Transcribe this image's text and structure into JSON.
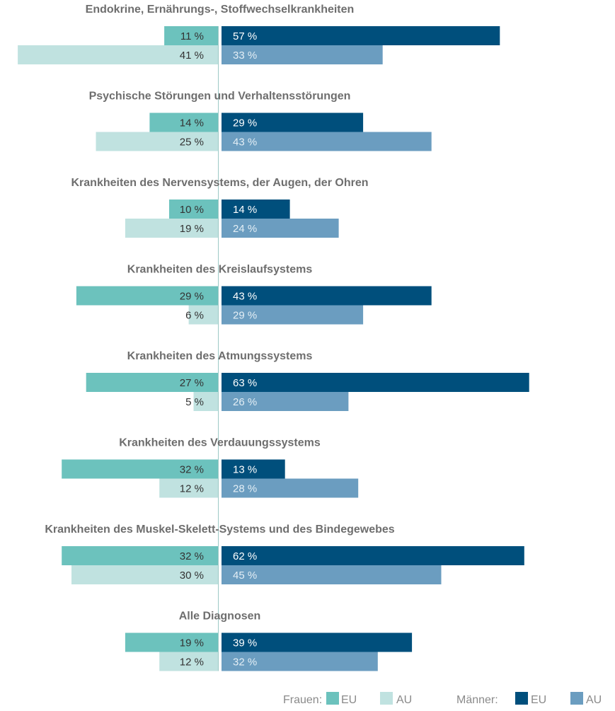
{
  "chart_data": {
    "type": "bar",
    "orientation": "horizontal-diverging",
    "value_suffix": " %",
    "colors": {
      "frauen_eu": "#6cc2bd",
      "frauen_au": "#c0e2e0",
      "maenner_eu": "#004f7c",
      "maenner_au": "#6b9dc0",
      "title": "#6e6e6e",
      "legend_text": "#8a8a8a",
      "label_dark": "#333333",
      "label_light": "#ffffff",
      "label_light_au": "#e3eef5"
    },
    "categories": [
      "Endokrine, Ernährungs-, Stoffwechselkrankheiten",
      "Psychische Störungen und Verhaltensstörungen",
      "Krankheiten des Nervensystems, der Augen, der Ohren",
      "Krankheiten des Kreislaufsystems",
      "Krankheiten des Atmungssystems",
      "Krankheiten des Verdauungssystems",
      "Krankheiten des Muskel-Skelett-Systems und des Bindegewebes",
      "Alle Diagnosen"
    ],
    "series": [
      {
        "key": "frauen_eu",
        "side": "left",
        "values": [
          11,
          14,
          10,
          29,
          27,
          32,
          32,
          19
        ]
      },
      {
        "key": "frauen_au",
        "side": "left",
        "values": [
          41,
          25,
          19,
          6,
          5,
          12,
          30,
          12
        ]
      },
      {
        "key": "maenner_eu",
        "side": "right",
        "values": [
          57,
          29,
          14,
          43,
          63,
          13,
          62,
          39
        ]
      },
      {
        "key": "maenner_au",
        "side": "right",
        "values": [
          33,
          43,
          24,
          29,
          26,
          28,
          45,
          32
        ]
      }
    ],
    "xlim": [
      0,
      65
    ],
    "grid": false,
    "legend": {
      "placement": "bottom-right",
      "frauen_label": "Frauen:",
      "maenner_label": "Männer:",
      "eu_label": "EU",
      "au_label": "AU"
    }
  }
}
